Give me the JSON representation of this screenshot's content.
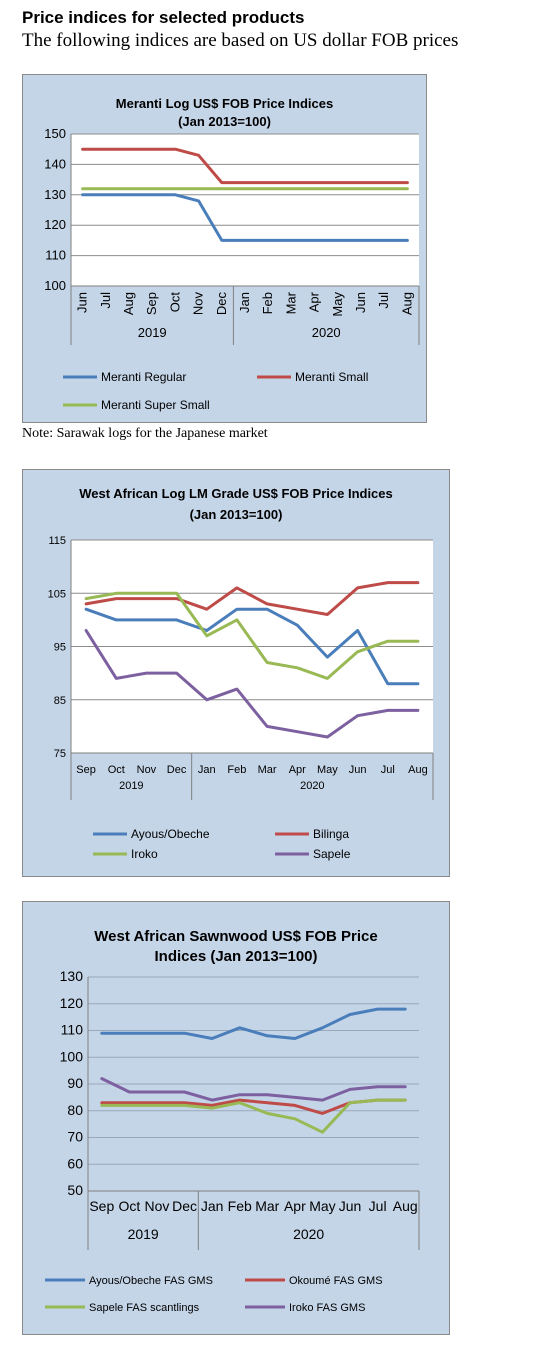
{
  "page": {
    "heading": "Price indices for selected products",
    "subheading": "The following indices are based on US dollar FOB prices",
    "note": "Note: Sarawak logs for the Japanese market"
  },
  "chart_data": [
    {
      "type": "line",
      "title": "Meranti Log US$ FOB Price Indices",
      "subtitle": "(Jan 2013=100)",
      "categories": [
        "Jun",
        "Jul",
        "Aug",
        "Sep",
        "Oct",
        "Nov",
        "Dec",
        "Jan",
        "Feb",
        "Mar",
        "Apr",
        "May",
        "Jun",
        "Jul",
        "Aug"
      ],
      "year_groups": [
        {
          "label": "2019",
          "count": 7
        },
        {
          "label": "2020",
          "count": 8
        }
      ],
      "ylim": [
        100,
        150
      ],
      "yticks": [
        100,
        110,
        120,
        130,
        140,
        150
      ],
      "grid": true,
      "legend_position": "bottom",
      "series": [
        {
          "name": "Meranti Regular",
          "color": "#4a7ebb",
          "values": [
            130,
            130,
            130,
            130,
            130,
            128,
            115,
            115,
            115,
            115,
            115,
            115,
            115,
            115,
            115
          ]
        },
        {
          "name": "Meranti Small",
          "color": "#be4b48",
          "values": [
            145,
            145,
            145,
            145,
            145,
            143,
            134,
            134,
            134,
            134,
            134,
            134,
            134,
            134,
            134
          ]
        },
        {
          "name": "Meranti Super Small",
          "color": "#98b954",
          "values": [
            132,
            132,
            132,
            132,
            132,
            132,
            132,
            132,
            132,
            132,
            132,
            132,
            132,
            132,
            132
          ]
        }
      ]
    },
    {
      "type": "line",
      "title": "West African Log LM Grade US$ FOB Price Indices",
      "subtitle": "(Jan 2013=100)",
      "categories": [
        "Sep",
        "Oct",
        "Nov",
        "Dec",
        "Jan",
        "Feb",
        "Mar",
        "Apr",
        "May",
        "Jun",
        "Jul",
        "Aug"
      ],
      "year_groups": [
        {
          "label": "2019",
          "count": 4
        },
        {
          "label": "2020",
          "count": 8
        }
      ],
      "ylim": [
        75,
        115
      ],
      "yticks": [
        75,
        85,
        95,
        105,
        115
      ],
      "grid": true,
      "legend_position": "bottom",
      "series": [
        {
          "name": "Ayous/Obeche",
          "color": "#4a7ebb",
          "values": [
            102,
            100,
            100,
            100,
            98,
            102,
            102,
            99,
            93,
            98,
            88,
            88
          ]
        },
        {
          "name": "Bilinga",
          "color": "#be4b48",
          "values": [
            103,
            104,
            104,
            104,
            102,
            106,
            103,
            102,
            101,
            106,
            107,
            107
          ]
        },
        {
          "name": "Iroko",
          "color": "#98b954",
          "values": [
            104,
            105,
            105,
            105,
            97,
            100,
            92,
            91,
            89,
            94,
            96,
            96
          ]
        },
        {
          "name": "Sapele",
          "color": "#7d60a0",
          "values": [
            98,
            89,
            90,
            90,
            85,
            87,
            80,
            79,
            78,
            82,
            83,
            83
          ]
        }
      ]
    },
    {
      "type": "line",
      "title": "West African Sawnwood US$ FOB Price",
      "subtitle": "Indices (Jan 2013=100)",
      "categories": [
        "Sep",
        "Oct",
        "Nov",
        "Dec",
        "Jan",
        "Feb",
        "Mar",
        "Apr",
        "May",
        "Jun",
        "Jul",
        "Aug"
      ],
      "year_groups": [
        {
          "label": "2019",
          "count": 4
        },
        {
          "label": "2020",
          "count": 8
        }
      ],
      "ylim": [
        50,
        130
      ],
      "yticks": [
        50,
        60,
        70,
        80,
        90,
        100,
        110,
        120,
        130
      ],
      "grid": true,
      "legend_position": "bottom",
      "series": [
        {
          "name": "Ayous/Obeche  FAS GMS",
          "color": "#4a7ebb",
          "values": [
            109,
            109,
            109,
            109,
            107,
            111,
            108,
            107,
            111,
            116,
            118,
            118
          ]
        },
        {
          "name": "Okoumé  FAS GMS",
          "color": "#be4b48",
          "values": [
            83,
            83,
            83,
            83,
            82,
            84,
            83,
            82,
            79,
            83,
            84,
            84
          ]
        },
        {
          "name": "Sapele FAS scantlings",
          "color": "#98b954",
          "values": [
            82,
            82,
            82,
            82,
            81,
            83,
            79,
            77,
            72,
            83,
            84,
            84
          ]
        },
        {
          "name": "Iroko FAS GMS",
          "color": "#7d60a0",
          "values": [
            92,
            87,
            87,
            87,
            84,
            86,
            86,
            85,
            84,
            88,
            89,
            89
          ]
        }
      ]
    }
  ]
}
